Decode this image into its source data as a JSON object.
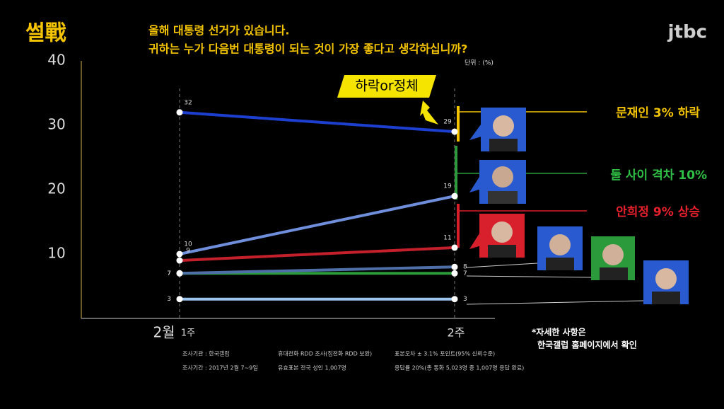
{
  "logo": "썰戰",
  "broadcaster": "jtbc",
  "chart_data": {
    "type": "line",
    "title": "올해 대통령 선거가 있습니다.",
    "subtitle": "귀하는 누가 다음번 대통령이 되는 것이 가장 좋다고 생각하십니까?",
    "unit": "단위 : (%)",
    "x_label": "2월",
    "categories": [
      "1주",
      "2주"
    ],
    "series": [
      {
        "color": "#1c3fd0",
        "values": [
          32,
          29
        ]
      },
      {
        "color": "#6f8fdc",
        "values": [
          10,
          19
        ]
      },
      {
        "color": "#c4202c",
        "values": [
          9,
          11
        ]
      },
      {
        "color": "#4f6fa8",
        "values": [
          7,
          8
        ]
      },
      {
        "color": "#2a9a3a",
        "values": [
          7,
          7
        ]
      },
      {
        "color": "#9cc6f0",
        "values": [
          3,
          3
        ]
      }
    ],
    "ylim": [
      0,
      40
    ],
    "yticks": [
      10,
      20,
      30,
      40
    ],
    "callout": "하락or정체",
    "annotations": [
      "문재인 3% 하락",
      "둘 사이 격차 10%",
      "안희정 9% 상승"
    ],
    "note": [
      "*자세한 사항은",
      "한국갤럽 홈페이지에서 확인"
    ],
    "footnotes": [
      "조사기관 : 한국갤럽",
      "휴대전화 RDD 조사(집전화 RDD 보완)",
      "표본오차 ± 3.1% 포인트(95% 신뢰수준)",
      "조사기간 : 2017년 2월 7~9일",
      "유효표본 전국 성인 1,007명",
      "응답률 20%(총 통화 5,023명 중 1,007명 응답 완료)"
    ]
  }
}
